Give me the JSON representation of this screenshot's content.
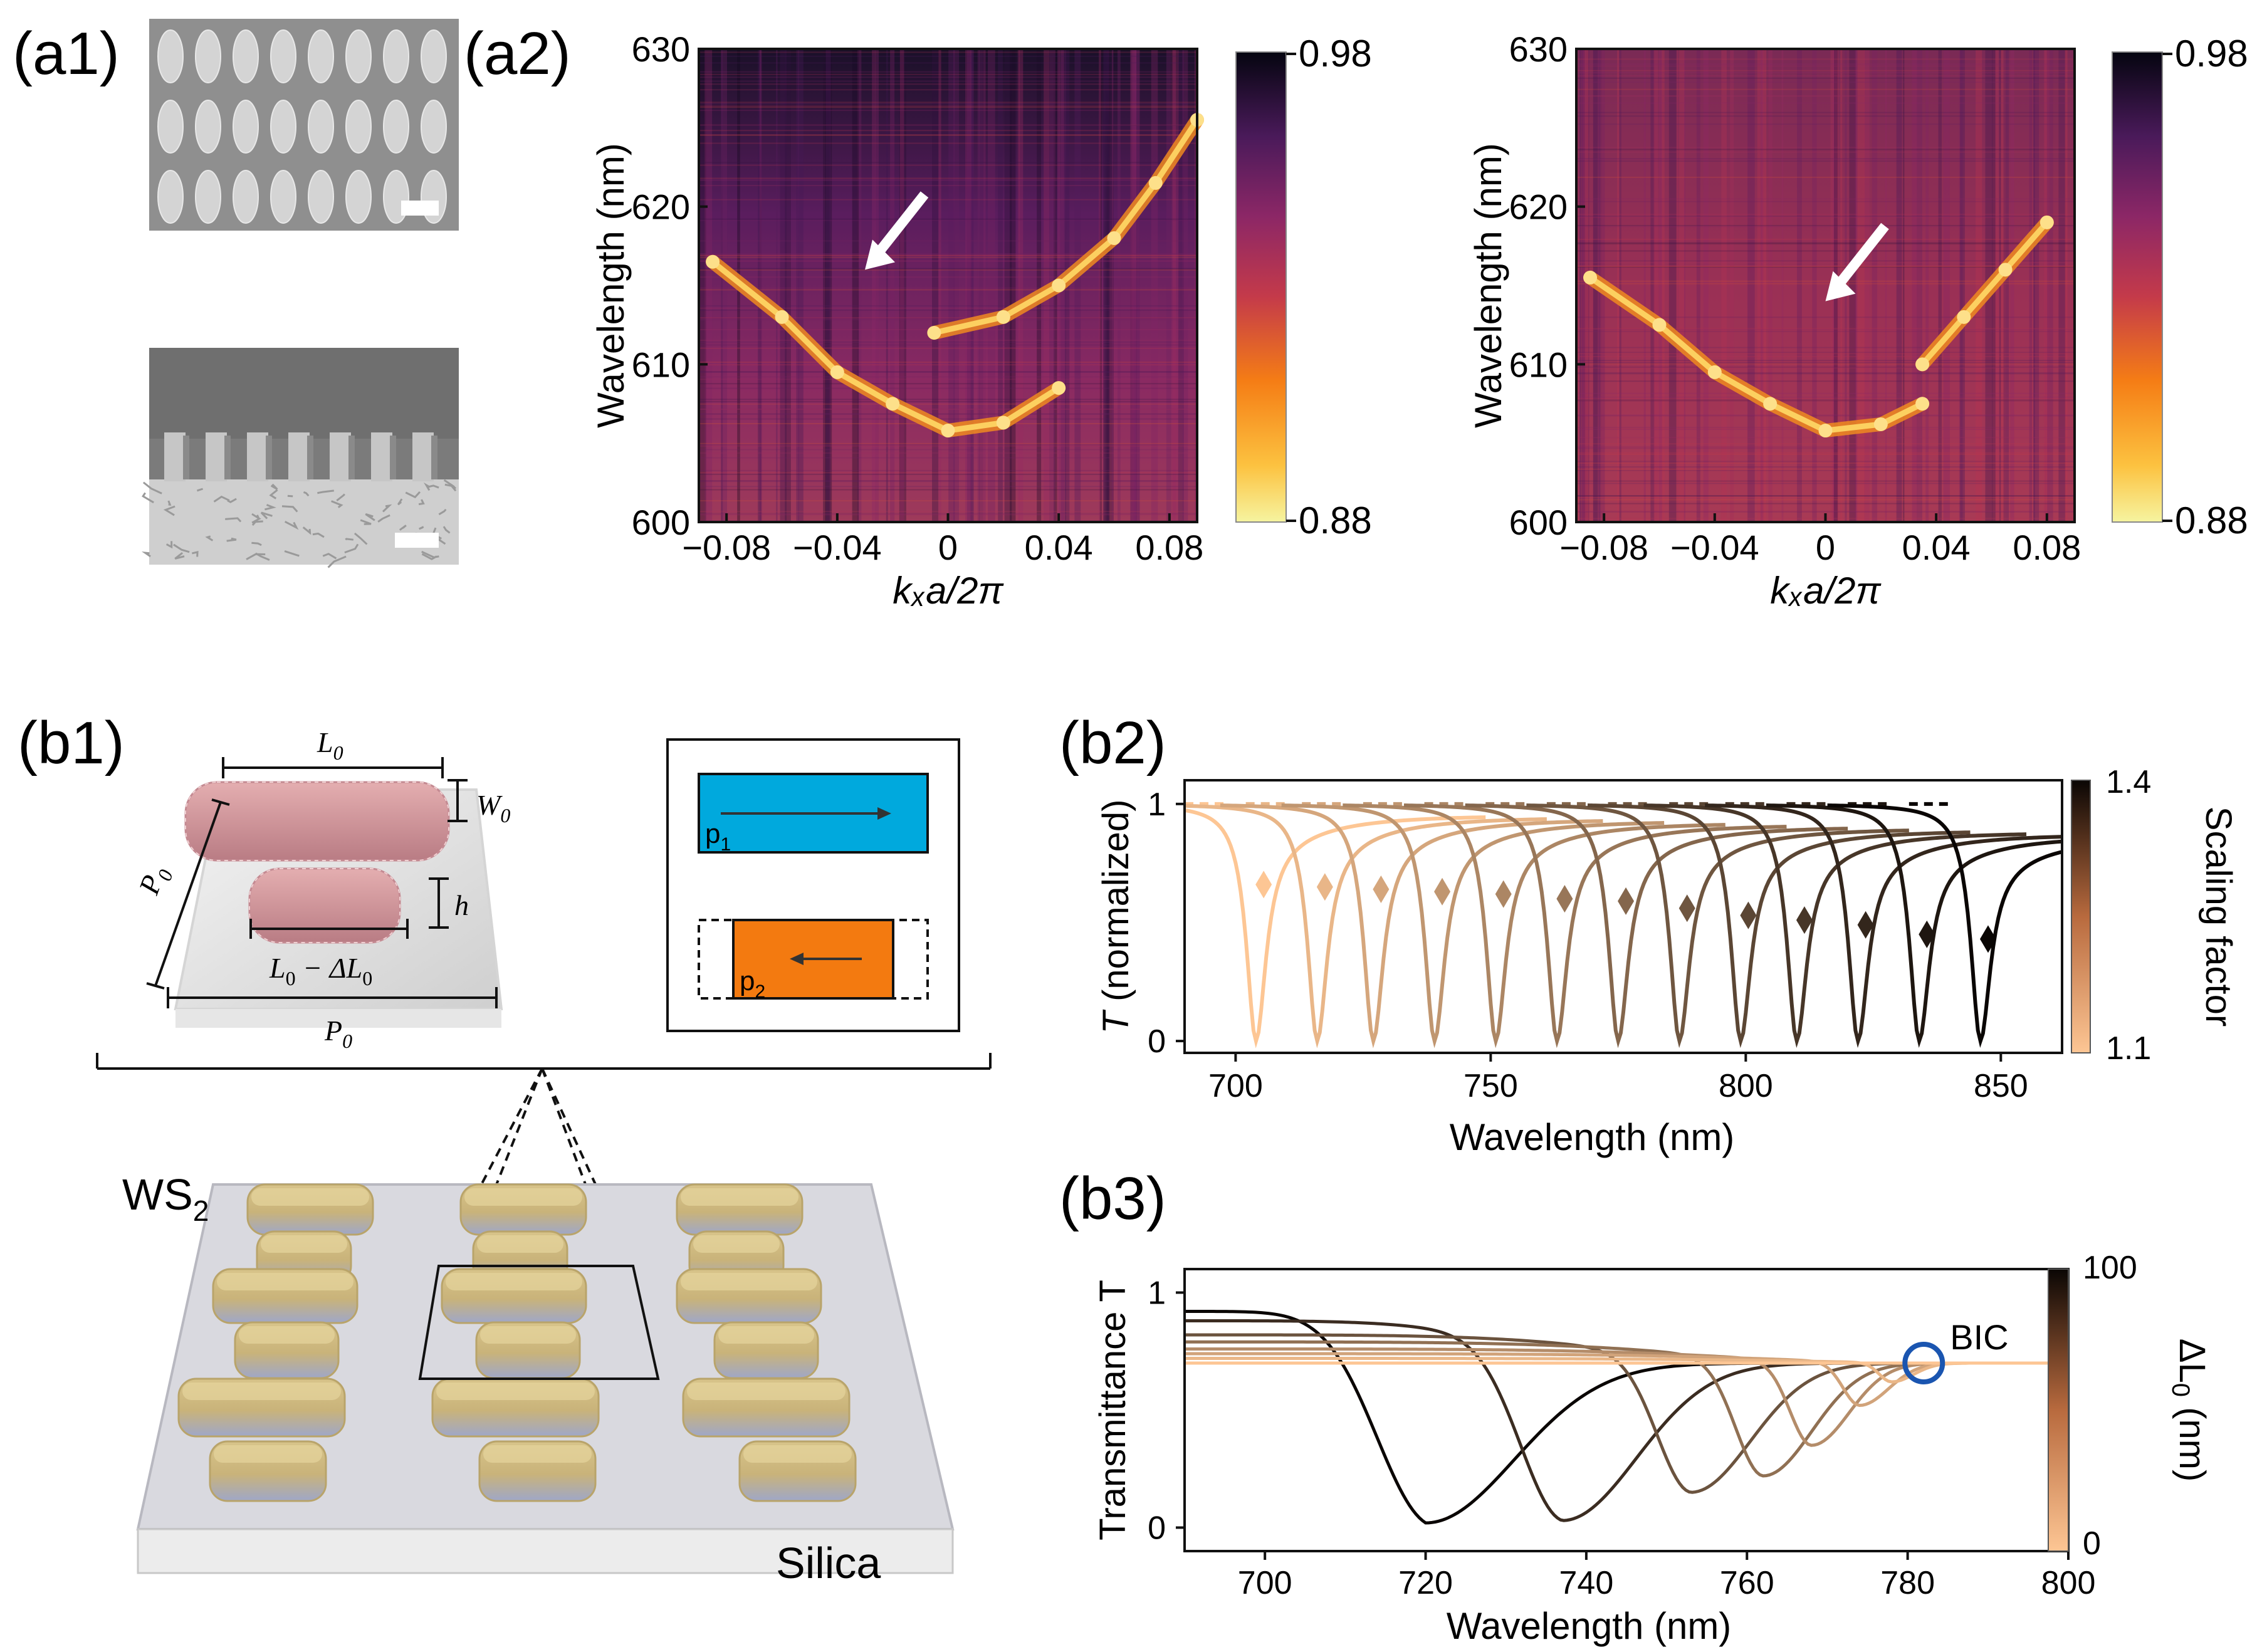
{
  "panel_labels": {
    "a1": "(a1)",
    "a2": "(a2)",
    "b1": "(b1)",
    "b2": "(b2)",
    "b3": "(b3)"
  },
  "colors": {
    "accent_blue": "#00a9dd",
    "accent_orange": "#f37a10",
    "bic_circle": "#1a55b0",
    "arrow": "#ffffff"
  },
  "b1": {
    "labels": {
      "L0": "L",
      "L0_sub": "0",
      "W0": "W",
      "W0_sub": "0",
      "P0_left": "P",
      "P0_left_sub": "0",
      "P0_bottom": "P",
      "P0_bottom_sub": "0",
      "h": "h",
      "Ldelta_a": "L",
      "Ldelta_sub": "0",
      "Ldelta_b": " − ΔL",
      "Ldelta_sub2": "0",
      "p1": "p",
      "p1_sub": "1",
      "p2": "p",
      "p2_sub": "2",
      "ws2": "WS",
      "ws2_sub": "2",
      "silica": "Silica"
    }
  },
  "chart_data": [
    {
      "type": "heatmap",
      "id": "a2_left",
      "xlabel": "kₓa/2π",
      "ylabel": "Wavelength (nm)",
      "xlim": [
        -0.09,
        0.09
      ],
      "ylim": [
        600,
        630
      ],
      "xticks": [
        -0.08,
        -0.04,
        0,
        0.04,
        0.08
      ],
      "xtick_labels": [
        "−0.08",
        "−0.04",
        "0",
        "0.04",
        "0.08"
      ],
      "yticks": [
        600,
        610,
        620,
        630
      ],
      "ytick_labels": [
        "600",
        "610",
        "620",
        "630"
      ],
      "colorbar": {
        "min": 0.88,
        "max": 0.98,
        "labels": [
          "0.98",
          "0.88"
        ]
      },
      "bands": [
        {
          "name": "lower",
          "kx": [
            -0.085,
            -0.06,
            -0.04,
            -0.02,
            0,
            0.02,
            0.04
          ],
          "wavelength": [
            616.5,
            613,
            609.5,
            607.5,
            605.8,
            606.3,
            608.5
          ]
        },
        {
          "name": "upper",
          "kx": [
            -0.005,
            0.02,
            0.04,
            0.06,
            0.075,
            0.09
          ],
          "wavelength": [
            612,
            613,
            615,
            618,
            621.5,
            625.5
          ]
        }
      ],
      "annotation": {
        "type": "arrow",
        "points_to_kx": -0.03,
        "points_to_wavelength": 616
      }
    },
    {
      "type": "heatmap",
      "id": "a2_right",
      "xlabel": "kₓa/2π",
      "ylabel": "Wavelength (nm)",
      "xlim": [
        -0.09,
        0.09
      ],
      "ylim": [
        600,
        630
      ],
      "xticks": [
        -0.08,
        -0.04,
        0,
        0.04,
        0.08
      ],
      "xtick_labels": [
        "−0.08",
        "−0.04",
        "0",
        "0.04",
        "0.08"
      ],
      "yticks": [
        600,
        610,
        620,
        630
      ],
      "ytick_labels": [
        "600",
        "610",
        "620",
        "630"
      ],
      "colorbar": {
        "min": 0.88,
        "max": 0.98,
        "labels": [
          "0.98",
          "0.88"
        ]
      },
      "bands": [
        {
          "name": "lower",
          "kx": [
            -0.085,
            -0.06,
            -0.04,
            -0.02,
            0,
            0.02,
            0.035
          ],
          "wavelength": [
            615.5,
            612.5,
            609.5,
            607.5,
            605.8,
            606.2,
            607.5
          ]
        },
        {
          "name": "upper",
          "kx": [
            0.035,
            0.05,
            0.065,
            0.08
          ],
          "wavelength": [
            610,
            613,
            616,
            619
          ]
        }
      ],
      "annotation": {
        "type": "arrow",
        "points_to_kx": 0.0,
        "points_to_wavelength": 614
      }
    },
    {
      "type": "line",
      "id": "b2",
      "xlabel": "Wavelength (nm)",
      "ylabel_italic": "T",
      "ylabel_rest": " (normalized)",
      "xlim": [
        690,
        862
      ],
      "ylim": [
        -0.05,
        1.1
      ],
      "xticks": [
        700,
        750,
        800,
        850
      ],
      "xtick_labels": [
        "700",
        "750",
        "800",
        "850"
      ],
      "yticks": [
        0,
        1
      ],
      "ytick_labels": [
        "0",
        "1"
      ],
      "colorbar": {
        "label": "Scaling factor",
        "min": 1.1,
        "max": 1.4,
        "labels": [
          "1.4",
          "1.1"
        ]
      },
      "dip_wavelengths": [
        704,
        716,
        727,
        739,
        751,
        763,
        775,
        787,
        799,
        810,
        822,
        834,
        846
      ],
      "markers_T": [
        0.66,
        0.65,
        0.64,
        0.63,
        0.62,
        0.6,
        0.59,
        0.56,
        0.53,
        0.51,
        0.49,
        0.45,
        0.43
      ]
    },
    {
      "type": "line",
      "id": "b3",
      "xlabel": "Wavelength (nm)",
      "ylabel": "Transmittance T",
      "xlim": [
        690,
        800
      ],
      "ylim": [
        -0.1,
        1.1
      ],
      "xticks": [
        700,
        720,
        740,
        760,
        780,
        800
      ],
      "xtick_labels": [
        "700",
        "720",
        "740",
        "760",
        "780",
        "800"
      ],
      "yticks": [
        0,
        1
      ],
      "ytick_labels": [
        "0",
        "1"
      ],
      "colorbar": {
        "label": "ΔL",
        "label_sub": "0",
        "label_unit": " (nm)",
        "min": 0,
        "max": 100,
        "labels": [
          "100",
          "0"
        ]
      },
      "curves": [
        {
          "dL": 100,
          "dip": 720,
          "min_T": 0.02,
          "base": 0.92
        },
        {
          "dL": 80,
          "dip": 737,
          "min_T": 0.03,
          "base": 0.88
        },
        {
          "dL": 60,
          "dip": 753,
          "min_T": 0.15,
          "base": 0.82
        },
        {
          "dL": 45,
          "dip": 762,
          "min_T": 0.22,
          "base": 0.79
        },
        {
          "dL": 30,
          "dip": 768,
          "min_T": 0.35,
          "base": 0.76
        },
        {
          "dL": 18,
          "dip": 774,
          "min_T": 0.52,
          "base": 0.74
        },
        {
          "dL": 8,
          "dip": 778,
          "min_T": 0.62,
          "base": 0.72
        },
        {
          "dL": 0,
          "dip": 782,
          "min_T": 0.7,
          "base": 0.7
        }
      ],
      "annotation": {
        "text": "BIC",
        "wavelength": 782,
        "T": 0.7
      }
    }
  ]
}
